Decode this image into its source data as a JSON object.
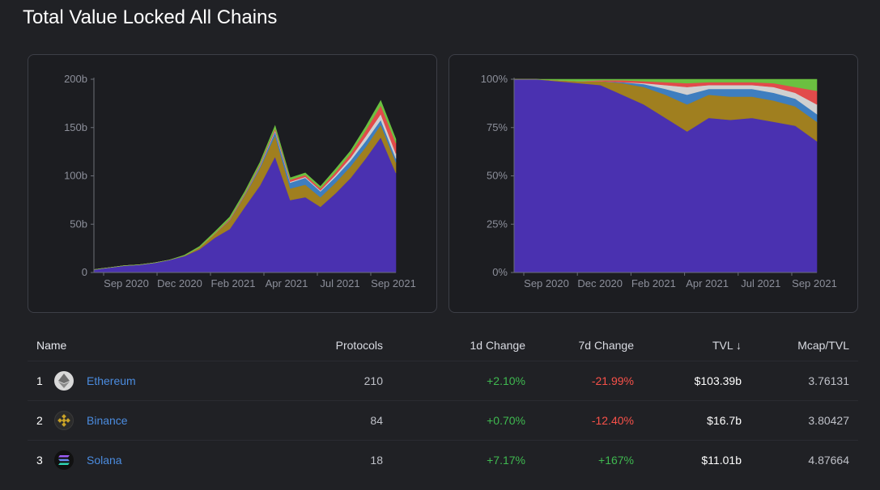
{
  "title": "Total Value Locked All Chains",
  "colors": {
    "ethereum": "#4a31b0",
    "binance": "#a07f1f",
    "polygon": "#3e7ebf",
    "avalanche": "#d0d0d0",
    "solana": "#e24b4b",
    "other_green": "#6bc040",
    "other_pink": "#d65fa6",
    "other_teal": "#2fc1c1",
    "positive": "#3fb950",
    "negative": "#f85149",
    "link": "#4b8cdf"
  },
  "chart_data": [
    {
      "type": "area",
      "stacked": true,
      "y_ticks": [
        "0",
        "50b",
        "100b",
        "150b",
        "200b"
      ],
      "x_ticks": [
        "Sep 2020",
        "Dec 2020",
        "Feb 2021",
        "Apr 2021",
        "Jul 2021",
        "Sep 2021"
      ],
      "ylim": [
        0,
        200
      ],
      "y_unit": "b",
      "x": [
        "2020-07",
        "2020-08",
        "2020-09",
        "2020-10",
        "2020-11",
        "2020-12",
        "2021-01",
        "2021-02",
        "2021-02b",
        "2021-03",
        "2021-04",
        "2021-04b",
        "2021-05",
        "2021-05b",
        "2021-06",
        "2021-07",
        "2021-07b",
        "2021-08",
        "2021-08b",
        "2021-09",
        "2021-09b"
      ],
      "series": [
        {
          "key": "ethereum",
          "values": [
            3,
            5,
            7,
            8,
            10,
            13,
            17,
            24,
            36,
            45,
            68,
            90,
            120,
            75,
            78,
            68,
            82,
            98,
            118,
            140,
            103
          ]
        },
        {
          "key": "binance",
          "values": [
            0,
            0,
            0,
            0,
            0,
            0,
            0.5,
            2,
            4,
            9,
            12,
            18,
            22,
            12,
            13,
            10,
            11,
            12,
            12,
            13,
            11
          ]
        },
        {
          "key": "polygon",
          "values": [
            0,
            0,
            0,
            0,
            0,
            0,
            0,
            0,
            0,
            0.5,
            1,
            2,
            4,
            6,
            7,
            6,
            6,
            6,
            6,
            5,
            4
          ]
        },
        {
          "key": "avalanche",
          "values": [
            0,
            0,
            0,
            0,
            0,
            0,
            0,
            0,
            0,
            0,
            0,
            0.5,
            1,
            1,
            1,
            1,
            2,
            3,
            5,
            6,
            5
          ]
        },
        {
          "key": "solana",
          "values": [
            0,
            0,
            0,
            0,
            0,
            0,
            0,
            0,
            0.5,
            1,
            1,
            1.5,
            2,
            2,
            2,
            2,
            3,
            4,
            6,
            9,
            11
          ]
        },
        {
          "key": "other_green",
          "values": [
            0,
            0,
            0,
            0,
            0,
            0,
            0.5,
            1,
            1.5,
            2,
            2,
            2,
            3,
            2,
            2,
            2,
            3,
            3,
            4,
            5,
            4
          ]
        }
      ]
    },
    {
      "type": "area",
      "stacked": true,
      "normalized": true,
      "y_ticks": [
        "0%",
        "25%",
        "50%",
        "75%",
        "100%"
      ],
      "x_ticks": [
        "Sep 2020",
        "Dec 2020",
        "Feb 2021",
        "Apr 2021",
        "Jul 2021",
        "Sep 2021"
      ],
      "ylim": [
        0,
        100
      ],
      "x": [
        "2020-07",
        "2020-09",
        "2020-11",
        "2021-01",
        "2021-02",
        "2021-03",
        "2021-04",
        "2021-04b",
        "2021-05",
        "2021-05b",
        "2021-06",
        "2021-07",
        "2021-08",
        "2021-09",
        "2021-09b"
      ],
      "series": [
        {
          "key": "ethereum",
          "values": [
            100,
            100,
            99,
            98,
            97,
            92,
            87,
            80,
            73,
            80,
            79,
            80,
            78,
            76,
            68
          ]
        },
        {
          "key": "binance",
          "values": [
            0,
            0,
            0.5,
            1,
            2,
            6,
            9,
            12,
            14,
            12,
            12,
            11,
            11,
            10,
            10
          ]
        },
        {
          "key": "polygon",
          "values": [
            0,
            0,
            0,
            0,
            0,
            0.5,
            1.5,
            3,
            5,
            3,
            4,
            4,
            4,
            4,
            4
          ]
        },
        {
          "key": "avalanche",
          "values": [
            0,
            0,
            0,
            0,
            0,
            0,
            0.5,
            2,
            4,
            2,
            2,
            2,
            3,
            3,
            5
          ]
        },
        {
          "key": "solana",
          "values": [
            0,
            0,
            0,
            0,
            0.5,
            1,
            1,
            1.5,
            2,
            1.5,
            1.5,
            1.5,
            2,
            3,
            7
          ]
        },
        {
          "key": "other_green",
          "values": [
            0,
            0,
            0.5,
            1,
            0.5,
            0.5,
            1,
            1.5,
            2,
            1.5,
            1.5,
            1.5,
            2,
            4,
            6
          ]
        }
      ]
    }
  ],
  "table": {
    "headers": {
      "name": "Name",
      "protocols": "Protocols",
      "change_1d": "1d Change",
      "change_7d": "7d Change",
      "tvl": "TVL ↓",
      "mcap_tvl": "Mcap/TVL"
    },
    "rows": [
      {
        "rank": "1",
        "name": "Ethereum",
        "icon": "ethereum-icon",
        "protocols": "210",
        "change_1d": "+2.10%",
        "change_7d": "-21.99%",
        "tvl": "$103.39b",
        "mcap_tvl": "3.76131"
      },
      {
        "rank": "2",
        "name": "Binance",
        "icon": "binance-icon",
        "protocols": "84",
        "change_1d": "+0.70%",
        "change_7d": "-12.40%",
        "tvl": "$16.7b",
        "mcap_tvl": "3.80427"
      },
      {
        "rank": "3",
        "name": "Solana",
        "icon": "solana-icon",
        "protocols": "18",
        "change_1d": "+7.17%",
        "change_7d": "+167%",
        "tvl": "$11.01b",
        "mcap_tvl": "4.87664"
      }
    ]
  }
}
